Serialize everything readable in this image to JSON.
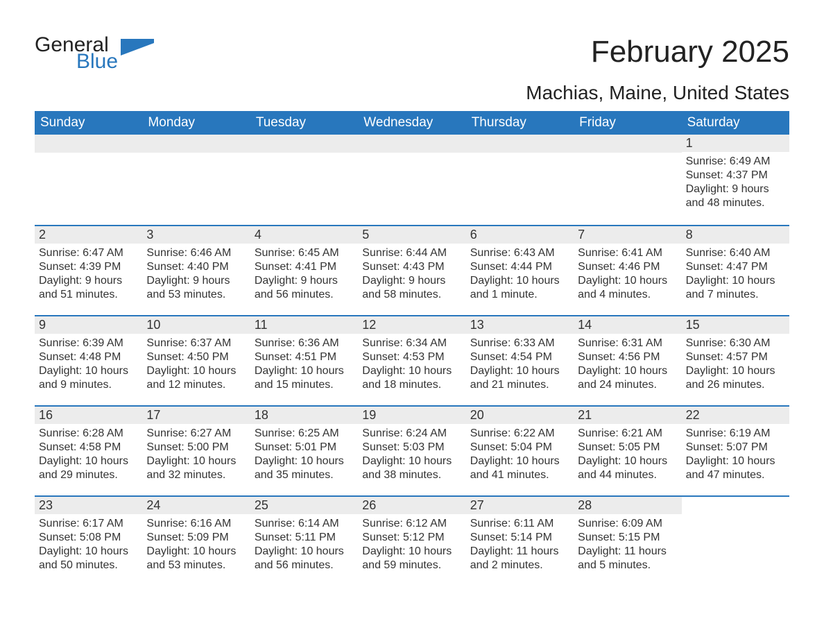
{
  "logo": {
    "word1": "General",
    "word2": "Blue",
    "flag_color": "#2877bd"
  },
  "title": "February 2025",
  "location": "Machias, Maine, United States",
  "colors": {
    "header_bg": "#2877bd",
    "header_text": "#ffffff",
    "daynum_bg": "#ececec",
    "border": "#2877bd",
    "text": "#333333",
    "background": "#ffffff"
  },
  "weekdays": [
    "Sunday",
    "Monday",
    "Tuesday",
    "Wednesday",
    "Thursday",
    "Friday",
    "Saturday"
  ],
  "first_weekday_index": 6,
  "days": [
    {
      "n": 1,
      "sunrise": "6:49 AM",
      "sunset": "4:37 PM",
      "daylight": "9 hours and 48 minutes."
    },
    {
      "n": 2,
      "sunrise": "6:47 AM",
      "sunset": "4:39 PM",
      "daylight": "9 hours and 51 minutes."
    },
    {
      "n": 3,
      "sunrise": "6:46 AM",
      "sunset": "4:40 PM",
      "daylight": "9 hours and 53 minutes."
    },
    {
      "n": 4,
      "sunrise": "6:45 AM",
      "sunset": "4:41 PM",
      "daylight": "9 hours and 56 minutes."
    },
    {
      "n": 5,
      "sunrise": "6:44 AM",
      "sunset": "4:43 PM",
      "daylight": "9 hours and 58 minutes."
    },
    {
      "n": 6,
      "sunrise": "6:43 AM",
      "sunset": "4:44 PM",
      "daylight": "10 hours and 1 minute."
    },
    {
      "n": 7,
      "sunrise": "6:41 AM",
      "sunset": "4:46 PM",
      "daylight": "10 hours and 4 minutes."
    },
    {
      "n": 8,
      "sunrise": "6:40 AM",
      "sunset": "4:47 PM",
      "daylight": "10 hours and 7 minutes."
    },
    {
      "n": 9,
      "sunrise": "6:39 AM",
      "sunset": "4:48 PM",
      "daylight": "10 hours and 9 minutes."
    },
    {
      "n": 10,
      "sunrise": "6:37 AM",
      "sunset": "4:50 PM",
      "daylight": "10 hours and 12 minutes."
    },
    {
      "n": 11,
      "sunrise": "6:36 AM",
      "sunset": "4:51 PM",
      "daylight": "10 hours and 15 minutes."
    },
    {
      "n": 12,
      "sunrise": "6:34 AM",
      "sunset": "4:53 PM",
      "daylight": "10 hours and 18 minutes."
    },
    {
      "n": 13,
      "sunrise": "6:33 AM",
      "sunset": "4:54 PM",
      "daylight": "10 hours and 21 minutes."
    },
    {
      "n": 14,
      "sunrise": "6:31 AM",
      "sunset": "4:56 PM",
      "daylight": "10 hours and 24 minutes."
    },
    {
      "n": 15,
      "sunrise": "6:30 AM",
      "sunset": "4:57 PM",
      "daylight": "10 hours and 26 minutes."
    },
    {
      "n": 16,
      "sunrise": "6:28 AM",
      "sunset": "4:58 PM",
      "daylight": "10 hours and 29 minutes."
    },
    {
      "n": 17,
      "sunrise": "6:27 AM",
      "sunset": "5:00 PM",
      "daylight": "10 hours and 32 minutes."
    },
    {
      "n": 18,
      "sunrise": "6:25 AM",
      "sunset": "5:01 PM",
      "daylight": "10 hours and 35 minutes."
    },
    {
      "n": 19,
      "sunrise": "6:24 AM",
      "sunset": "5:03 PM",
      "daylight": "10 hours and 38 minutes."
    },
    {
      "n": 20,
      "sunrise": "6:22 AM",
      "sunset": "5:04 PM",
      "daylight": "10 hours and 41 minutes."
    },
    {
      "n": 21,
      "sunrise": "6:21 AM",
      "sunset": "5:05 PM",
      "daylight": "10 hours and 44 minutes."
    },
    {
      "n": 22,
      "sunrise": "6:19 AM",
      "sunset": "5:07 PM",
      "daylight": "10 hours and 47 minutes."
    },
    {
      "n": 23,
      "sunrise": "6:17 AM",
      "sunset": "5:08 PM",
      "daylight": "10 hours and 50 minutes."
    },
    {
      "n": 24,
      "sunrise": "6:16 AM",
      "sunset": "5:09 PM",
      "daylight": "10 hours and 53 minutes."
    },
    {
      "n": 25,
      "sunrise": "6:14 AM",
      "sunset": "5:11 PM",
      "daylight": "10 hours and 56 minutes."
    },
    {
      "n": 26,
      "sunrise": "6:12 AM",
      "sunset": "5:12 PM",
      "daylight": "10 hours and 59 minutes."
    },
    {
      "n": 27,
      "sunrise": "6:11 AM",
      "sunset": "5:14 PM",
      "daylight": "11 hours and 2 minutes."
    },
    {
      "n": 28,
      "sunrise": "6:09 AM",
      "sunset": "5:15 PM",
      "daylight": "11 hours and 5 minutes."
    }
  ],
  "labels": {
    "sunrise": "Sunrise:",
    "sunset": "Sunset:",
    "daylight": "Daylight:"
  }
}
